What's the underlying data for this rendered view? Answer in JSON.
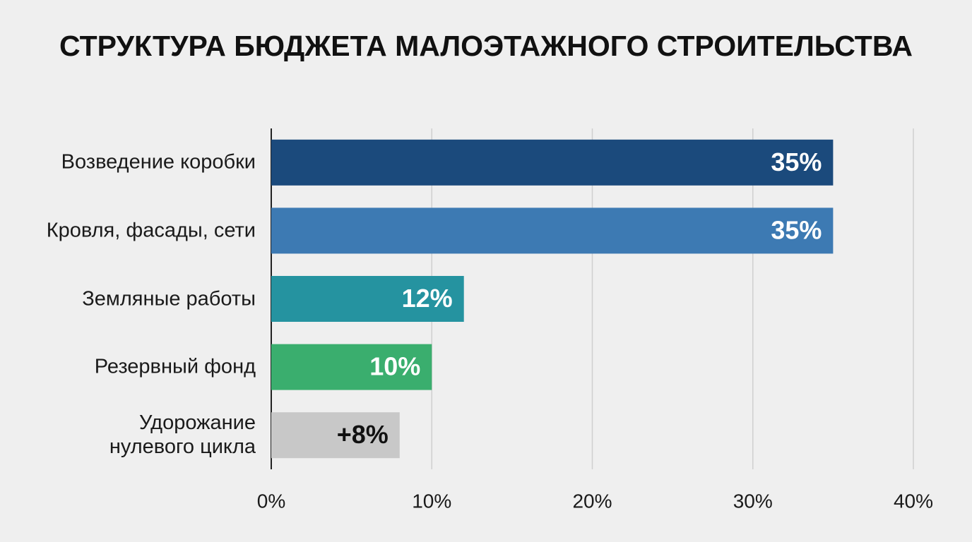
{
  "chart_data": {
    "type": "bar",
    "orientation": "horizontal",
    "title": "СТРУКТУРА БЮДЖЕТА МАЛОЭТАЖНОГО СТРОИТЕЛЬСТВА",
    "categories": [
      "Возведение коробки",
      "Кровля, фасады, сети",
      "Земляные работы",
      "Резервный фонд",
      "Удорожание\nнулевого цикла"
    ],
    "values": [
      35,
      35,
      12,
      10,
      8
    ],
    "value_labels": [
      "35%",
      "35%",
      "12%",
      "10%",
      "+8%"
    ],
    "colors": [
      "#1b4a7c",
      "#3d7ab3",
      "#2593a0",
      "#3aae6e",
      "#c8c8c8"
    ],
    "xlim": [
      0,
      40
    ],
    "xticks": [
      {
        "value": 0,
        "label": "0%"
      },
      {
        "value": 10,
        "label": "10%"
      },
      {
        "value": 20,
        "label": "20%"
      },
      {
        "value": 30,
        "label": "30%"
      },
      {
        "value": 40,
        "label": "40%"
      }
    ],
    "grid": true
  }
}
